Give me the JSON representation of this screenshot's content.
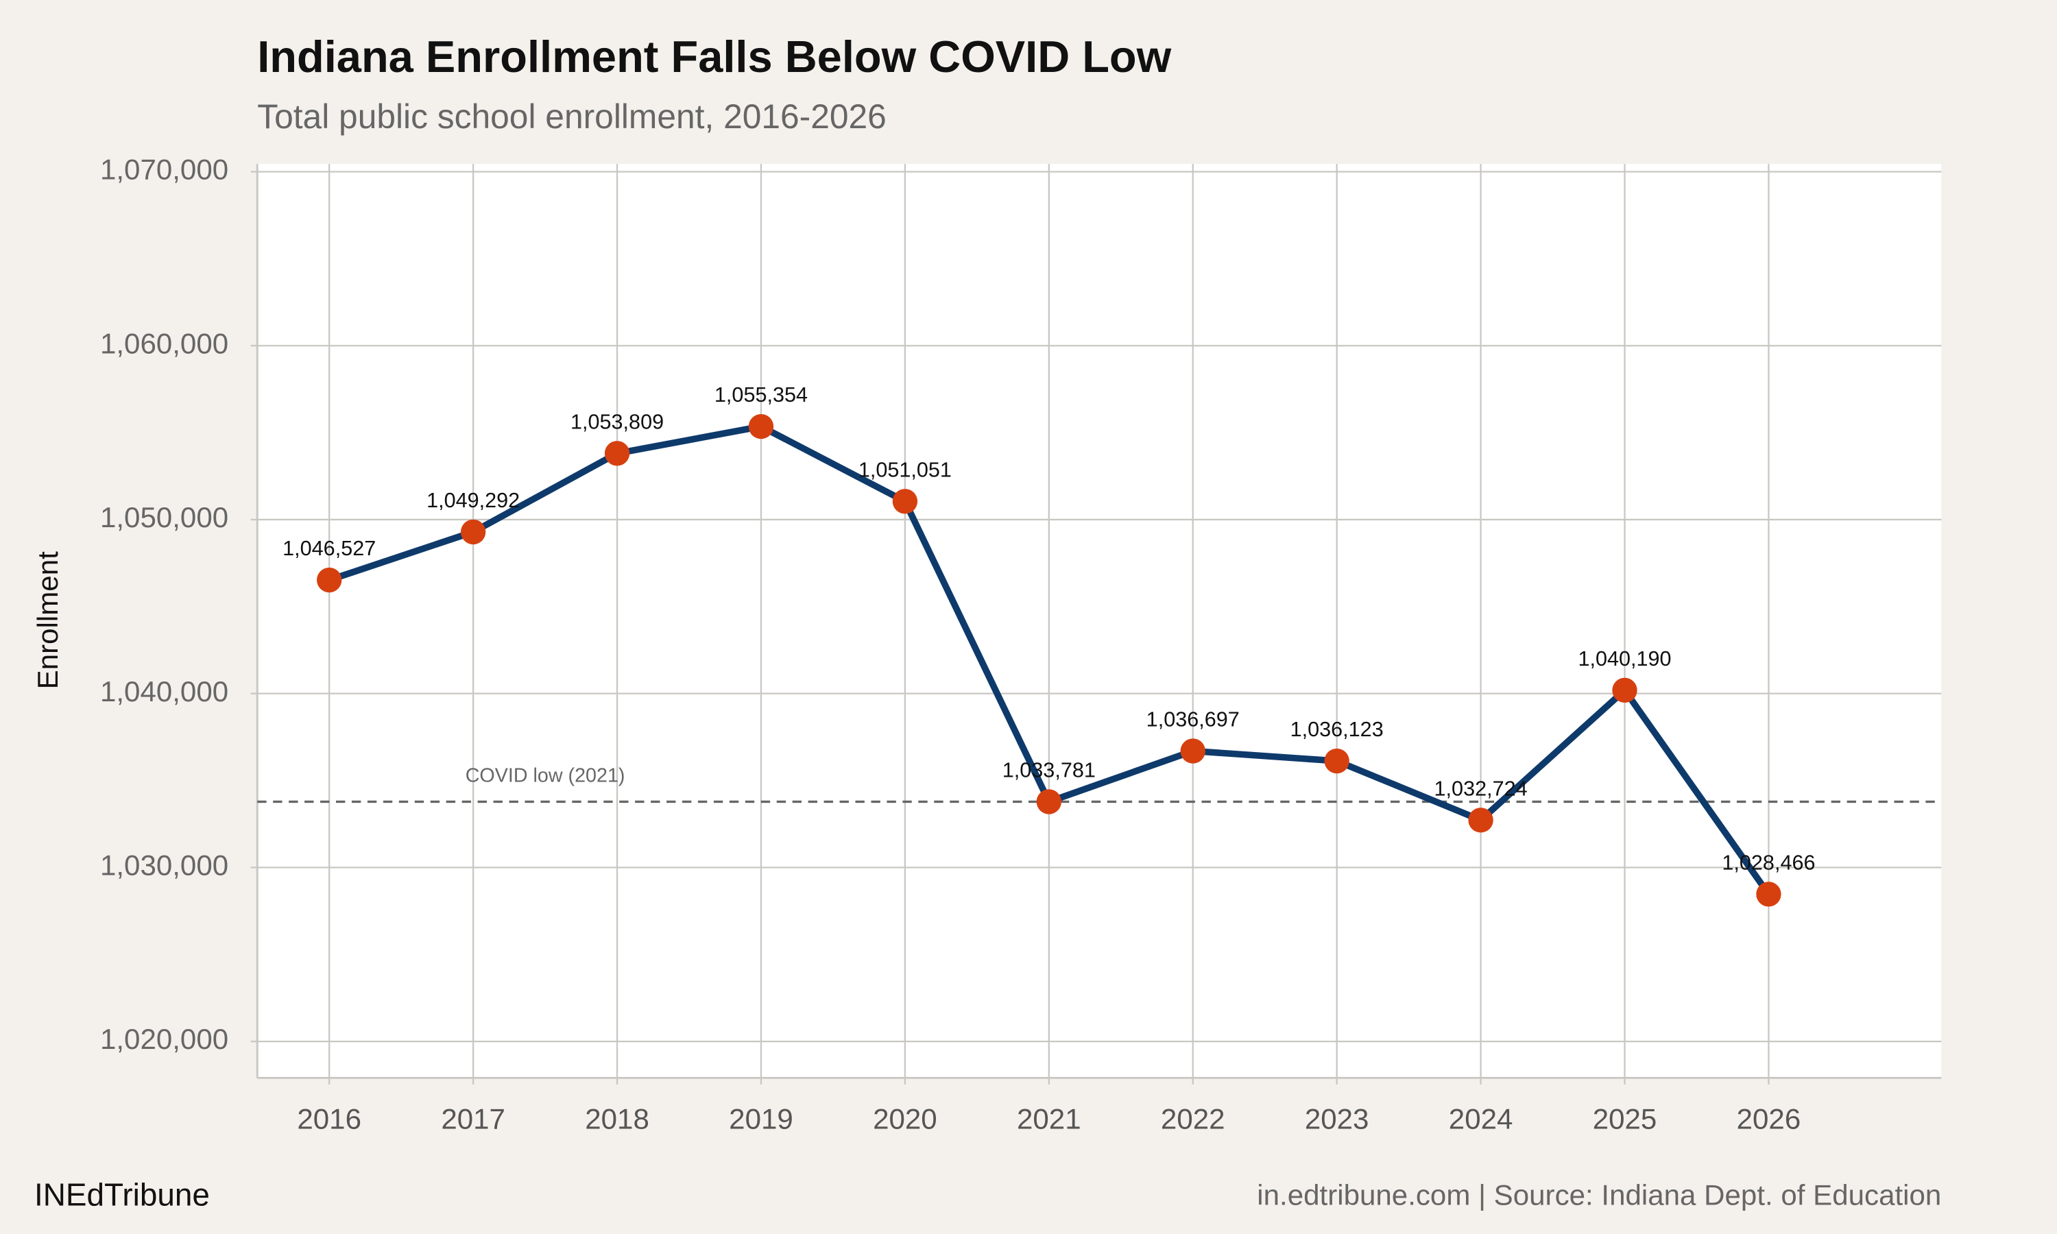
{
  "chart_data": {
    "type": "line",
    "title": "Indiana Enrollment Falls Below COVID Low",
    "subtitle": "Total public school enrollment, 2016-2026",
    "y_label": "Enrollment",
    "x": [
      2016,
      2017,
      2018,
      2019,
      2020,
      2021,
      2022,
      2023,
      2024,
      2025,
      2026
    ],
    "values": [
      1046527,
      1049292,
      1053809,
      1055354,
      1051051,
      1033781,
      1036697,
      1036123,
      1032724,
      1040190,
      1028466
    ],
    "value_labels": [
      "1,046,527",
      "1,049,292",
      "1,053,809",
      "1,055,354",
      "1,051,051",
      "1,033,781",
      "1,036,697",
      "1,036,123",
      "1,032,724",
      "1,040,190",
      "1,028,466"
    ],
    "color": "#0e3a6b",
    "point_color": "#d6400f",
    "xlim": [
      2015.5,
      2027.2
    ],
    "ylim": [
      1017900,
      1070450
    ],
    "xticks": [
      2016,
      2017,
      2018,
      2019,
      2020,
      2021,
      2022,
      2023,
      2024,
      2025,
      2026
    ],
    "yticks": [
      {
        "value": 1020000,
        "label": "1,020,000"
      },
      {
        "value": 1030000,
        "label": "1,030,000"
      },
      {
        "value": 1040000,
        "label": "1,040,000"
      },
      {
        "value": 1050000,
        "label": "1,050,000"
      },
      {
        "value": 1060000,
        "label": "1,060,000"
      },
      {
        "value": 1070000,
        "label": "1,070,000"
      }
    ],
    "grid": true,
    "reference_line": {
      "value": 1033781,
      "label": "COVID low (2021)"
    },
    "source_left": "INEdTribune",
    "source_right": "in.edtribune.com | Source: Indiana Dept. of Education"
  }
}
